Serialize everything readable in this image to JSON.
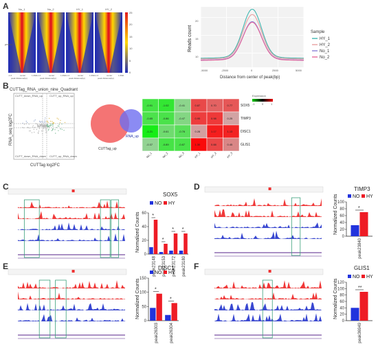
{
  "panels": {
    "A": {
      "label": "A"
    },
    "B": {
      "label": "B"
    },
    "C": {
      "label": "C"
    },
    "D": {
      "label": "D"
    },
    "E": {
      "label": "E"
    },
    "F": {
      "label": "F"
    }
  },
  "heatmaps": {
    "titles": [
      "No_1",
      "No_2",
      "HY_1",
      "HY_2"
    ],
    "xtick": [
      "-1.0",
      "center",
      "1.0Mb"
    ],
    "xlabel": "peak distance(bp)",
    "ylabel": "peaks",
    "scale_ticks": [
      "25",
      "20",
      "15",
      "10",
      "5",
      "0"
    ],
    "colors": {
      "high": "#e31a1c",
      "mid": "#ffd700",
      "low": "#1f2bb5"
    }
  },
  "profile": {
    "ylabel": "Reads count",
    "xlabel": "Distance from center of peak(bp)",
    "legend_title": "Sample",
    "legend": [
      "HY_1",
      "HY_2",
      "No_1",
      "No_2"
    ],
    "colors": [
      "#3fb6b0",
      "#e8a0a0",
      "#8a7fd6",
      "#e7679a"
    ]
  },
  "quadrant": {
    "title": "CUTTag_RNA_union_nine_Quadrant",
    "xlabel": "CUTTag log2FC",
    "ylabel": "RNA_seq log2FC",
    "corner_labels": [
      "CUTT_down_RNA_up",
      "CUTT_up_RNA_up",
      "CUTT_down_RNA_down",
      "CUTT_up_RNA_down"
    ]
  },
  "venn": {
    "left_label": "CUTTag_up",
    "right_label": "RNA_up",
    "left_color": "#f25c5c",
    "right_color": "#6e6ef0"
  },
  "expression_heatmap": {
    "legend_title": "Expression",
    "legend_ticks": [
      "-1",
      "0",
      "1"
    ],
    "rows": [
      "SOX5",
      "TIMP3",
      "DISC1",
      "GLIS1"
    ],
    "cols": [
      "No_1",
      "No_2",
      "No_3",
      "HY_1",
      "HY_2",
      "HY_3"
    ],
    "values": [
      [
        -0.91,
        -1.02,
        -0.41,
        0.87,
        0.7,
        0.77
      ],
      [
        -0.85,
        -0.86,
        -0.47,
        0.95,
        0.98,
        0.25
      ],
      [
        -1.21,
        -0.61,
        -0.76,
        0.28,
        1.17,
        1.13
      ],
      [
        -0.37,
        -0.89,
        -0.87,
        1.3,
        0.88,
        0.45
      ]
    ]
  },
  "bar_panels": {
    "legend": [
      "NO",
      "HY"
    ],
    "colors": {
      "NO": "#2233dd",
      "HY": "#ee1c25"
    },
    "ylabel": "Normalized Counts",
    "C": {
      "title": "SOX5",
      "sig": [
        "*",
        "*",
        "*",
        "*"
      ]
    },
    "D": {
      "title": "TIMP3",
      "sig": [
        "*"
      ]
    },
    "E": {
      "title": "DISC1",
      "sig": [
        "*",
        "*"
      ]
    },
    "F": {
      "title": "GLIS1",
      "sig": [
        "**"
      ]
    }
  },
  "chart_data": [
    {
      "type": "bar",
      "title": "SOX5",
      "ylabel": "Normalized Counts",
      "categories": [
        "peak23148",
        "peak23153",
        "peak23172",
        "peak23180"
      ],
      "series": [
        {
          "name": "NO",
          "values": [
            10,
            3,
            5,
            5
          ]
        },
        {
          "name": "HY",
          "values": [
            50,
            15,
            30,
            30
          ]
        }
      ],
      "ylim": [
        0,
        60
      ],
      "yticks": [
        0,
        20,
        40,
        60
      ]
    },
    {
      "type": "bar",
      "title": "TIMP3",
      "ylabel": "Normalized Counts",
      "categories": [
        "peak23840"
      ],
      "series": [
        {
          "name": "NO",
          "values": [
            32
          ]
        },
        {
          "name": "HY",
          "values": [
            70
          ]
        }
      ],
      "ylim": [
        0,
        100
      ],
      "yticks": [
        0,
        20,
        40,
        60,
        80,
        100
      ]
    },
    {
      "type": "bar",
      "title": "DISC1",
      "ylabel": "Normalized Counts",
      "categories": [
        "peak26303",
        "peak26304"
      ],
      "series": [
        {
          "name": "NO",
          "values": [
            45,
            20
          ]
        },
        {
          "name": "HY",
          "values": [
            95,
            62
          ]
        }
      ],
      "ylim": [
        0,
        150
      ],
      "yticks": [
        0,
        50,
        100,
        150
      ]
    },
    {
      "type": "bar",
      "title": "GLIS1",
      "ylabel": "Normalized Counts",
      "categories": [
        "peak36949"
      ],
      "series": [
        {
          "name": "NO",
          "values": [
            40
          ]
        },
        {
          "name": "HY",
          "values": [
            90
          ]
        }
      ],
      "ylim": [
        0,
        120
      ],
      "yticks": [
        0,
        20,
        40,
        60,
        80,
        100,
        120
      ]
    },
    {
      "type": "line",
      "ylabel": "Reads count",
      "xlabel": "Distance from center of peak(bp)",
      "x": [
        -5000,
        -2500,
        0,
        2500,
        5000
      ],
      "xticks": [
        "-5000",
        "-2500",
        "0",
        "2500",
        "5000"
      ],
      "yticks": [
        "10",
        "15",
        "20"
      ],
      "series": [
        {
          "name": "HY_1",
          "values": [
            8.5,
            9.5,
            22,
            9.5,
            8.5
          ]
        },
        {
          "name": "HY_2",
          "values": [
            8.3,
            9.3,
            20.5,
            9.3,
            8.3
          ]
        },
        {
          "name": "No_1",
          "values": [
            8.0,
            9.0,
            18.5,
            9.0,
            8.0
          ]
        },
        {
          "name": "No_2",
          "values": [
            7.9,
            8.9,
            18.3,
            8.9,
            7.9
          ]
        }
      ]
    }
  ]
}
